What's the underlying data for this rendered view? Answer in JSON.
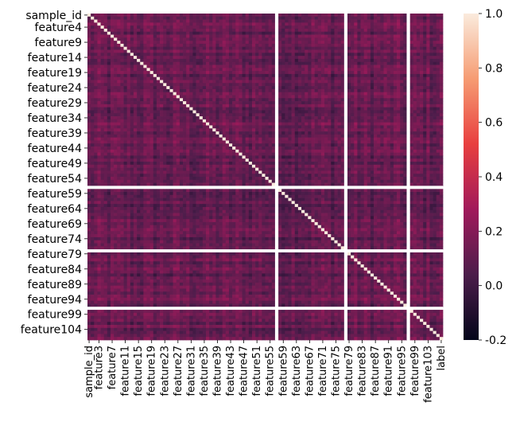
{
  "chart_data": {
    "type": "heatmap",
    "title": "",
    "xlabel": "",
    "ylabel": "",
    "colormap": "rocket",
    "color_range": [
      -0.2,
      1.0
    ],
    "diagonal_value": 1.0,
    "typical_value_range": [
      -0.1,
      0.4
    ],
    "row_labels_shown": [
      "sample_id",
      "feature4",
      "feature9",
      "feature14",
      "feature19",
      "feature24",
      "feature29",
      "feature34",
      "feature39",
      "feature44",
      "feature49",
      "feature54",
      "feature59",
      "feature64",
      "feature69",
      "feature74",
      "feature79",
      "feature84",
      "feature89",
      "feature94",
      "feature99",
      "feature104"
    ],
    "column_labels_shown": [
      "sample_id",
      "feature3",
      "feature7",
      "feature11",
      "feature15",
      "feature19",
      "feature23",
      "feature27",
      "feature31",
      "feature35",
      "feature39",
      "feature43",
      "feature47",
      "feature51",
      "feature55",
      "feature59",
      "feature63",
      "feature67",
      "feature71",
      "feature75",
      "feature79",
      "feature83",
      "feature87",
      "feature91",
      "feature95",
      "feature99",
      "feature103",
      "label"
    ],
    "constant_columns_no_correlation": [
      "feature57",
      "feature78",
      "feature97"
    ],
    "colorbar": {
      "ticks": [
        "1.0",
        "0.8",
        "0.6",
        "0.4",
        "0.2",
        "0.0",
        "-0.2"
      ]
    },
    "colorbar_colors": [
      "#03051a",
      "#4c1d4b",
      "#a11a5b",
      "#e83f3f",
      "#f69c73",
      "#faebdd"
    ]
  }
}
